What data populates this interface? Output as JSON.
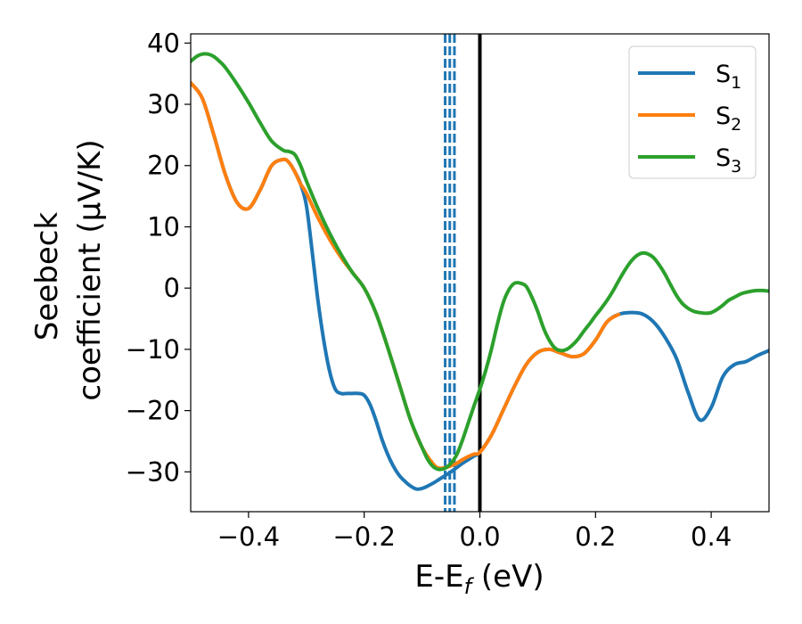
{
  "chart_data": {
    "type": "line",
    "xlabel": {
      "main": "E-E",
      "sub": "f",
      "tail": " (eV)"
    },
    "ylabel": {
      "line1": "Seebeck",
      "line2": "coefficient  (μV/K)"
    },
    "xlim": [
      -0.5,
      0.5
    ],
    "ylim": [
      -36.5,
      41.5
    ],
    "xticks": [
      -0.4,
      -0.2,
      0.0,
      0.2,
      0.4
    ],
    "xtick_labels": [
      "−0.4",
      "−0.2",
      "0.0",
      "0.2",
      "0.4"
    ],
    "yticks": [
      -30,
      -20,
      -10,
      0,
      10,
      20,
      30,
      40
    ],
    "ytick_labels": [
      "−30",
      "−20",
      "−10",
      "0",
      "10",
      "20",
      "30",
      "40"
    ],
    "grid": false,
    "legend_position": "top-right",
    "vertical_lines": [
      {
        "x": 0.0,
        "style": "solid",
        "color": "#000000"
      },
      {
        "x": -0.06,
        "style": "dashed",
        "color": "#1f77b4"
      },
      {
        "x": -0.052,
        "style": "dashed",
        "color": "#1f77b4"
      },
      {
        "x": -0.044,
        "style": "dashed",
        "color": "#1f77b4"
      }
    ],
    "series": [
      {
        "name": "S",
        "sub": "1",
        "color": "#1f77b4",
        "x": [
          -0.5,
          -0.48,
          -0.46,
          -0.44,
          -0.42,
          -0.4,
          -0.38,
          -0.36,
          -0.34,
          -0.33,
          -0.32,
          -0.31,
          -0.3,
          -0.29,
          -0.28,
          -0.27,
          -0.26,
          -0.25,
          -0.24,
          -0.23,
          -0.22,
          -0.21,
          -0.2,
          -0.19,
          -0.18,
          -0.17,
          -0.16,
          -0.15,
          -0.14,
          -0.13,
          -0.12,
          -0.11,
          -0.1,
          -0.09,
          -0.08,
          -0.07,
          -0.06,
          -0.05,
          -0.04,
          -0.03,
          -0.02,
          -0.01,
          0.0,
          0.02,
          0.04,
          0.06,
          0.08,
          0.1,
          0.12,
          0.14,
          0.16,
          0.18,
          0.2,
          0.22,
          0.24,
          0.26,
          0.28,
          0.3,
          0.32,
          0.34,
          0.36,
          0.38,
          0.4,
          0.42,
          0.44,
          0.46,
          0.48,
          0.5
        ],
        "y": [
          33.5,
          31,
          25,
          18.5,
          14,
          13,
          16,
          20,
          21,
          20.5,
          19,
          17,
          13.5,
          6,
          -2,
          -8.5,
          -13.5,
          -16.5,
          -17.2,
          -17.2,
          -17.2,
          -17.2,
          -17.5,
          -19,
          -21.5,
          -24.5,
          -27,
          -29,
          -30.5,
          -31.5,
          -32.3,
          -32.8,
          -32.7,
          -32.3,
          -31.8,
          -31.2,
          -30.6,
          -30.0,
          -29.3,
          -28.6,
          -28.0,
          -27.4,
          -26.8,
          -24.0,
          -20.0,
          -16.0,
          -12.5,
          -10.5,
          -10.0,
          -10.6,
          -11.2,
          -10.7,
          -8.5,
          -5.5,
          -4.3,
          -4.0,
          -4.2,
          -5.5,
          -8.0,
          -11.5,
          -17.0,
          -21.5,
          -19.5,
          -14.5,
          -12.5,
          -12.0,
          -11.0,
          -10.2
        ]
      },
      {
        "name": "S",
        "sub": "2",
        "color": "#ff7f0e",
        "x": [
          -0.5,
          -0.48,
          -0.46,
          -0.44,
          -0.42,
          -0.4,
          -0.38,
          -0.36,
          -0.34,
          -0.33,
          -0.32,
          -0.31,
          -0.3,
          -0.28,
          -0.26,
          -0.24,
          -0.22,
          -0.2,
          -0.18,
          -0.16,
          -0.14,
          -0.12,
          -0.1,
          -0.08,
          -0.07,
          -0.06,
          -0.05,
          -0.04,
          -0.03,
          -0.02,
          -0.01,
          0.0,
          0.02,
          0.04,
          0.06,
          0.08,
          0.1,
          0.12,
          0.14,
          0.16,
          0.18,
          0.2,
          0.22,
          0.24
        ],
        "y": [
          33.5,
          31,
          25,
          18.5,
          14,
          13,
          16,
          20,
          21,
          20.5,
          19,
          17,
          15.5,
          11.5,
          8,
          5,
          2.5,
          0,
          -4,
          -9.5,
          -15.5,
          -21.5,
          -26,
          -28.8,
          -29.4,
          -29.3,
          -29.0,
          -28.6,
          -28.0,
          -27.5,
          -27.1,
          -26.8,
          -24.0,
          -20.0,
          -16.0,
          -12.5,
          -10.5,
          -10.0,
          -10.6,
          -11.2,
          -10.7,
          -8.5,
          -5.5,
          -4.3
        ]
      },
      {
        "name": "S",
        "sub": "3",
        "color": "#2ca02c",
        "x": [
          -0.5,
          -0.49,
          -0.48,
          -0.47,
          -0.46,
          -0.45,
          -0.44,
          -0.42,
          -0.4,
          -0.38,
          -0.36,
          -0.34,
          -0.33,
          -0.32,
          -0.31,
          -0.3,
          -0.28,
          -0.26,
          -0.24,
          -0.22,
          -0.2,
          -0.18,
          -0.16,
          -0.14,
          -0.12,
          -0.1,
          -0.09,
          -0.08,
          -0.07,
          -0.06,
          -0.05,
          -0.04,
          -0.03,
          -0.02,
          -0.01,
          0.0,
          0.01,
          0.02,
          0.03,
          0.04,
          0.05,
          0.06,
          0.07,
          0.08,
          0.09,
          0.1,
          0.11,
          0.12,
          0.13,
          0.14,
          0.15,
          0.16,
          0.17,
          0.18,
          0.19,
          0.2,
          0.21,
          0.22,
          0.23,
          0.24,
          0.25,
          0.26,
          0.27,
          0.28,
          0.29,
          0.3,
          0.31,
          0.32,
          0.33,
          0.34,
          0.35,
          0.36,
          0.37,
          0.38,
          0.39,
          0.4,
          0.41,
          0.42,
          0.43,
          0.44,
          0.45,
          0.46,
          0.47,
          0.48,
          0.49,
          0.5
        ],
        "y": [
          37.0,
          37.8,
          38.2,
          38.2,
          37.8,
          37.0,
          36.0,
          33.3,
          30.3,
          27.0,
          24.0,
          22.5,
          22.3,
          21.8,
          20.0,
          17.5,
          13.0,
          9.0,
          5.5,
          2.5,
          0,
          -4,
          -9.5,
          -15.5,
          -21.5,
          -26.0,
          -28.0,
          -29.2,
          -29.6,
          -29.4,
          -28.6,
          -27.2,
          -24.8,
          -22.0,
          -19.2,
          -16.5,
          -13.5,
          -10.0,
          -6.0,
          -2.5,
          -0.3,
          0.8,
          0.8,
          0.3,
          -1.5,
          -3.8,
          -6.5,
          -8.5,
          -9.8,
          -10.2,
          -10.0,
          -9.3,
          -8.3,
          -7.0,
          -5.8,
          -4.5,
          -3.3,
          -2.0,
          -0.5,
          1.2,
          2.8,
          4.2,
          5.2,
          5.7,
          5.6,
          5.0,
          3.8,
          2.3,
          0.5,
          -1.2,
          -2.5,
          -3.3,
          -3.8,
          -4.0,
          -4.1,
          -4.0,
          -3.5,
          -2.8,
          -2.0,
          -1.5,
          -1.0,
          -0.7,
          -0.5,
          -0.4,
          -0.4,
          -0.5
        ]
      }
    ]
  }
}
